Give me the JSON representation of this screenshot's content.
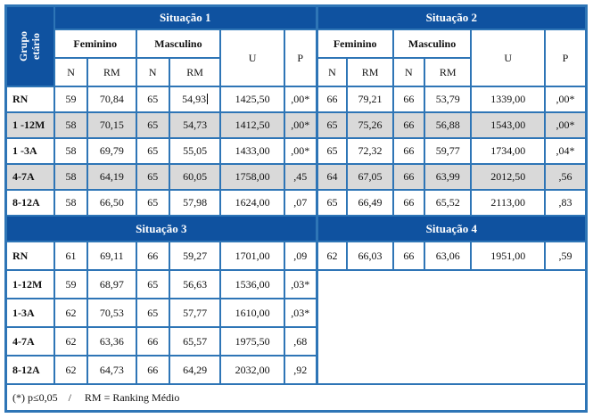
{
  "table": {
    "corner_header": {
      "line1": "Grupo",
      "line2": "etário"
    },
    "group_headers": {
      "feminino": "Feminino",
      "masculino": "Masculino"
    },
    "col_headers": {
      "n": "N",
      "rm": "RM",
      "u": "U",
      "p": "P"
    },
    "sections": [
      {
        "left_title": "Situação 1",
        "right_title": "Situação 2",
        "rows": [
          {
            "label": "RN",
            "shaded": false,
            "caret_after": 3,
            "left": [
              "59",
              "70,84",
              "65",
              "54,93",
              "1425,50",
              ",00*"
            ],
            "right": [
              "66",
              "79,21",
              "66",
              "53,79",
              "1339,00",
              ",00*"
            ]
          },
          {
            "label": "1 -12M",
            "shaded": true,
            "left": [
              "58",
              "70,15",
              "65",
              "54,73",
              "1412,50",
              ",00*"
            ],
            "right": [
              "65",
              "75,26",
              "66",
              "56,88",
              "1543,00",
              ",00*"
            ]
          },
          {
            "label": "1 -3A",
            "shaded": false,
            "left": [
              "58",
              "69,79",
              "65",
              "55,05",
              "1433,00",
              ",00*"
            ],
            "right": [
              "65",
              "72,32",
              "66",
              "59,77",
              "1734,00",
              ",04*"
            ]
          },
          {
            "label": "4-7A",
            "shaded": true,
            "left": [
              "58",
              "64,19",
              "65",
              "60,05",
              "1758,00",
              ",45"
            ],
            "right": [
              "64",
              "67,05",
              "66",
              "63,99",
              "2012,50",
              ",56"
            ]
          },
          {
            "label": "8-12A",
            "shaded": false,
            "left": [
              "58",
              "66,50",
              "65",
              "57,98",
              "1624,00",
              ",07"
            ],
            "right": [
              "65",
              "66,49",
              "66",
              "65,52",
              "2113,00",
              ",83"
            ]
          }
        ]
      },
      {
        "left_title": "Situação 3",
        "right_title": "Situação 4",
        "rows": [
          {
            "label": "RN",
            "shaded": false,
            "left": [
              "61",
              "69,11",
              "66",
              "59,27",
              "1701,00",
              ",09"
            ],
            "right": [
              "62",
              "66,03",
              "66",
              "63,06",
              "1951,00",
              ",59"
            ]
          },
          {
            "label": "1-12M",
            "shaded": false,
            "left": [
              "59",
              "68,97",
              "65",
              "56,63",
              "1536,00",
              ",03*"
            ],
            "right": null
          },
          {
            "label": "1-3A",
            "shaded": false,
            "left": [
              "62",
              "70,53",
              "65",
              "57,77",
              "1610,00",
              ",03*"
            ],
            "right": null
          },
          {
            "label": "4-7A",
            "shaded": false,
            "left": [
              "62",
              "63,36",
              "66",
              "65,57",
              "1975,50",
              ",68"
            ],
            "right": null
          },
          {
            "label": "8-12A",
            "shaded": false,
            "left": [
              "62",
              "64,73",
              "66",
              "64,29",
              "2032,00",
              ",92"
            ],
            "right": null
          }
        ]
      }
    ],
    "footnote": "(*) p≤0,05    /     RM = Ranking Médio"
  },
  "colors": {
    "band_blue": "#0f52a0",
    "border_blue": "#2e75b6",
    "shaded_row": "#d9d9d9",
    "text": "#111111",
    "background": "#ffffff"
  }
}
